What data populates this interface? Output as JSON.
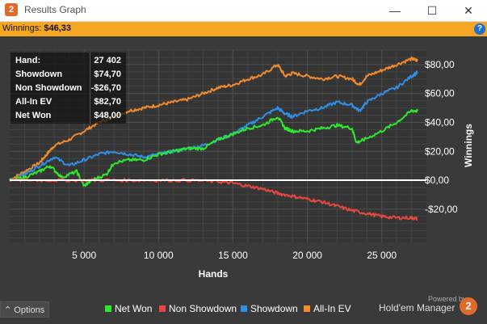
{
  "window": {
    "title": "Results Graph",
    "app_icon_glyph": "2",
    "minimize_glyph": "—",
    "maximize_glyph": "☐",
    "close_glyph": "✕"
  },
  "winnings_bar": {
    "label": "Winnings:",
    "value": "$46,33",
    "help_glyph": "?"
  },
  "stats": [
    {
      "label": "Hand:",
      "value": "27 402"
    },
    {
      "label": "Showdown",
      "value": "$74,70"
    },
    {
      "label": "Non Showdown",
      "value": "-$26,70"
    },
    {
      "label": "All-In EV",
      "value": "$82,70"
    },
    {
      "label": "Net Won",
      "value": "$48,00"
    }
  ],
  "options_label": "Options",
  "options_icon": "⌃",
  "powered_by": "Powered by",
  "brand": "Hold'em Manager",
  "brand_logo_glyph": "2",
  "colors": {
    "net_won": "#2ee82e",
    "non_showdown": "#e8473f",
    "showdown": "#2f8fe6",
    "allin_ev": "#f08a2c",
    "accent": "#f5a623"
  },
  "chart_data": {
    "type": "line",
    "xlabel": "Hands",
    "ylabel": "Winnings",
    "xlim": [
      0,
      28000
    ],
    "ylim": [
      -43,
      90
    ],
    "x_ticks": [
      5000,
      10000,
      15000,
      20000,
      25000
    ],
    "x_tick_labels": [
      "5 000",
      "10 000",
      "15 000",
      "20 000",
      "25 000"
    ],
    "y_ticks": [
      80,
      60,
      40,
      20,
      0,
      -20
    ],
    "y_tick_labels": [
      "$80,00",
      "$60,00",
      "$40,00",
      "$20,00",
      "$0,00",
      "-$20,00"
    ],
    "zero_line": true,
    "grid": true,
    "series": [
      {
        "name": "All-In EV",
        "color_key": "allin_ev",
        "x": [
          0,
          1000,
          2000,
          2500,
          3000,
          4000,
          5000,
          6000,
          7000,
          8000,
          9000,
          10000,
          11000,
          12000,
          13000,
          14000,
          15000,
          16000,
          17000,
          18000,
          18500,
          19000,
          20000,
          21000,
          22000,
          23000,
          23500,
          24000,
          25000,
          26000,
          27000,
          27400
        ],
        "y": [
          0,
          6,
          12,
          18,
          24,
          28,
          34,
          40,
          44,
          48,
          50,
          52,
          54,
          56,
          60,
          64,
          66,
          70,
          73,
          80,
          72,
          74,
          72,
          70,
          72,
          70,
          66,
          72,
          76,
          80,
          84,
          82.7
        ]
      },
      {
        "name": "Showdown",
        "color_key": "showdown",
        "x": [
          0,
          1000,
          2000,
          3000,
          4000,
          5000,
          6000,
          7000,
          8000,
          9000,
          10000,
          11000,
          12000,
          13000,
          14000,
          15000,
          16000,
          17000,
          18000,
          18500,
          19000,
          20000,
          21000,
          22000,
          23000,
          23500,
          24000,
          25000,
          26000,
          27000,
          27400
        ],
        "y": [
          0,
          4,
          10,
          16,
          10,
          14,
          18,
          20,
          18,
          16,
          18,
          20,
          22,
          24,
          28,
          32,
          38,
          44,
          50,
          46,
          44,
          48,
          50,
          54,
          52,
          48,
          54,
          60,
          64,
          72,
          74.7
        ]
      },
      {
        "name": "Net Won",
        "color_key": "net_won",
        "x": [
          0,
          1000,
          2000,
          2700,
          3500,
          4500,
          5000,
          5500,
          6500,
          7000,
          8000,
          9000,
          10000,
          11000,
          12000,
          13000,
          14000,
          15000,
          16000,
          17000,
          18000,
          18500,
          19000,
          20000,
          21000,
          22000,
          23000,
          23300,
          23800,
          25000,
          26000,
          27000,
          27400
        ],
        "y": [
          0,
          2,
          6,
          10,
          2,
          6,
          -4,
          0,
          4,
          12,
          14,
          14,
          18,
          20,
          22,
          22,
          28,
          32,
          36,
          38,
          44,
          36,
          34,
          34,
          36,
          38,
          36,
          26,
          28,
          34,
          40,
          48,
          48
        ]
      },
      {
        "name": "Non Showdown",
        "color_key": "non_showdown",
        "x": [
          0,
          2000,
          4000,
          6000,
          8000,
          10000,
          12000,
          14000,
          15000,
          16000,
          17000,
          18000,
          19000,
          20000,
          21000,
          22000,
          23000,
          24000,
          25000,
          26000,
          27000,
          27400
        ],
        "y": [
          0,
          0,
          0,
          0,
          0,
          0,
          0,
          -1,
          -2,
          -4,
          -6,
          -9,
          -11,
          -13,
          -15,
          -18,
          -21,
          -23,
          -25,
          -26,
          -26,
          -26.7
        ]
      }
    ],
    "legend_placement": "bottom"
  }
}
